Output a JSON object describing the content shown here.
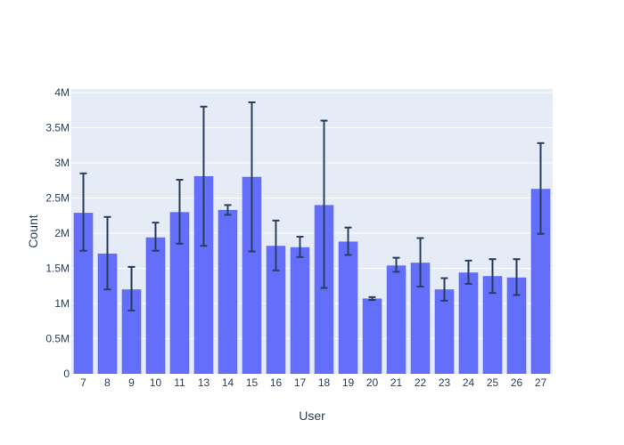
{
  "chart_data": {
    "type": "bar",
    "xlabel": "User",
    "ylabel": "Count",
    "ylim": [
      0,
      4050000
    ],
    "y_ticks": [
      0,
      500000,
      1000000,
      1500000,
      2000000,
      2500000,
      3000000,
      3500000,
      4000000
    ],
    "y_tick_labels": [
      "0",
      "0.5M",
      "1M",
      "1.5M",
      "2M",
      "2.5M",
      "3M",
      "3.5M",
      "4M"
    ],
    "categories": [
      "7",
      "8",
      "9",
      "10",
      "11",
      "13",
      "14",
      "15",
      "16",
      "17",
      "18",
      "19",
      "20",
      "21",
      "22",
      "23",
      "24",
      "25",
      "26",
      "27"
    ],
    "values": [
      2290000,
      1710000,
      1200000,
      1940000,
      2300000,
      2810000,
      2330000,
      2800000,
      1820000,
      1800000,
      2400000,
      1880000,
      1070000,
      1540000,
      1580000,
      1200000,
      1440000,
      1390000,
      1370000,
      2630000
    ],
    "error_low": [
      1750000,
      1200000,
      900000,
      1750000,
      1850000,
      1820000,
      2260000,
      1740000,
      1470000,
      1660000,
      1220000,
      1690000,
      1050000,
      1450000,
      1240000,
      1040000,
      1280000,
      1150000,
      1120000,
      1990000
    ],
    "error_high": [
      2850000,
      2230000,
      1520000,
      2150000,
      2760000,
      3800000,
      2400000,
      3860000,
      2180000,
      1950000,
      3600000,
      2080000,
      1090000,
      1650000,
      1930000,
      1360000,
      1610000,
      1630000,
      1630000,
      3280000
    ],
    "grid": true,
    "colors": {
      "bar": "#636efa",
      "error_bar": "#2a3f5f",
      "plot_bg": "#e5ecf6",
      "grid": "#ffffff",
      "text": "#2a3f5f"
    }
  }
}
